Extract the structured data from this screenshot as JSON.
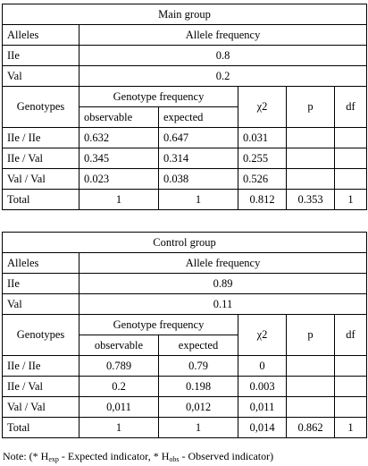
{
  "tables": [
    {
      "title": "Main group",
      "alleles_label": "Alleles",
      "allele_freq_header": "Allele frequency",
      "alleles": [
        {
          "name": "IIe",
          "freq": "0.8"
        },
        {
          "name": "Val",
          "freq": "0.2"
        }
      ],
      "genotypes_label": "Genotypes",
      "genotype_freq_header": "Genotype frequency",
      "observable_header": "observable",
      "expected_header": "expected",
      "chi2_header": "χ2",
      "p_header": "p",
      "df_header": "df",
      "rows": [
        {
          "genotype": "IIe / IIe",
          "observable": "0.632",
          "expected": "0.647",
          "chi2": "0.031"
        },
        {
          "genotype": "IIe / Val",
          "observable": "0.345",
          "expected": "0.314",
          "chi2": "0.255"
        },
        {
          "genotype": "Val / Val",
          "observable": "0.023",
          "expected": "0.038",
          "chi2": "0.526"
        }
      ],
      "total": {
        "label": "Total",
        "observable": "1",
        "expected": "1",
        "chi2": "0.812",
        "p": "0.353",
        "df": "1"
      }
    },
    {
      "title": "Control group",
      "alleles_label": "Alleles",
      "allele_freq_header": "Allele frequency",
      "alleles": [
        {
          "name": "IIe",
          "freq": "0.89"
        },
        {
          "name": "Val",
          "freq": "0.11"
        }
      ],
      "genotypes_label": "Genotypes",
      "genotype_freq_header": "Genotype frequency",
      "observable_header": "observable",
      "expected_header": "expected",
      "chi2_header": "χ2",
      "p_header": "p",
      "df_header": "df",
      "rows": [
        {
          "genotype": "IIe / IIe",
          "observable": "0.789",
          "expected": "0.79",
          "chi2": "0"
        },
        {
          "genotype": "IIe / Val",
          "observable": "0.2",
          "expected": "0.198",
          "chi2": "0.003"
        },
        {
          "genotype": "Val / Val",
          "observable": "0,011",
          "expected": "0,012",
          "chi2": "0,011"
        }
      ],
      "total": {
        "label": "Total",
        "observable": "1",
        "expected": "1",
        "chi2": "0,014",
        "p": "0.862",
        "df": "1"
      }
    }
  ],
  "note": {
    "prefix": "Note: (* H",
    "exp_sub": "exp",
    "middle": " - Expected indicator, * H",
    "obs_sub": "obs",
    "suffix": " - Observed indicator)"
  }
}
